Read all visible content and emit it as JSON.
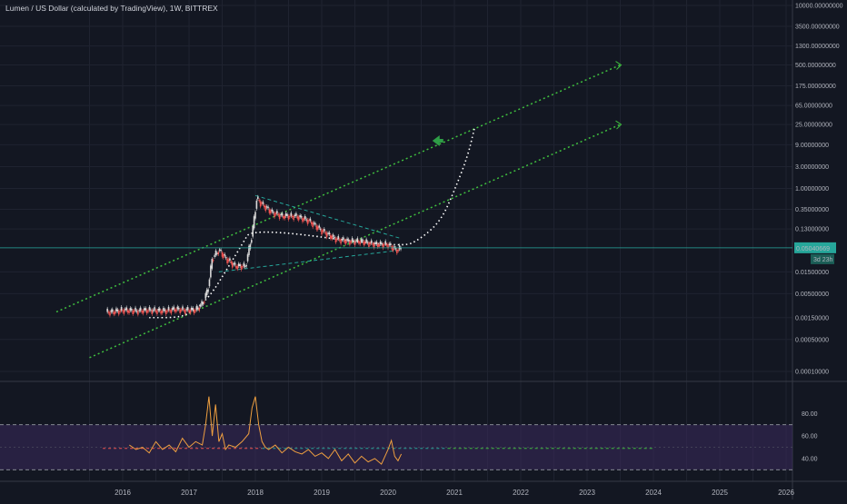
{
  "header": {
    "title": "Lumen / US Dollar (calculated by TradingView), 1W, BITTREX"
  },
  "colors": {
    "background": "#131722",
    "grid": "#1f2330",
    "up_candle": "#d9d9d9",
    "down_candle": "#ef5350",
    "channel": "#3fbf3f",
    "triangle": "#26a69a",
    "projection": "#ffffff",
    "price_line": "#26a69a",
    "indicator_line": "#f0a040",
    "indicator_band": "#3a2a5c",
    "indicator_dash": "#ef5350"
  },
  "chart_data": [
    {
      "type": "line",
      "title": "Lumen / US Dollar (calculated by TradingView), 1W, BITTREX",
      "scale": "log",
      "y_ticks": [
        "10000.00000000",
        "3500.00000000",
        "1300.00000000",
        "500.00000000",
        "175.00000000",
        "65.00000000",
        "25.00000000",
        "9.00000000",
        "3.00000000",
        "1.00000000",
        "0.35000000",
        "0.13000000",
        "0.05000000",
        "0.01500000",
        "0.00500000",
        "0.00150000",
        "0.00050000",
        "0.00010000"
      ],
      "x_ticks": [
        "2016",
        "2017",
        "2018",
        "2019",
        "2020",
        "2021",
        "2022",
        "2023",
        "2024",
        "2025",
        "2026"
      ],
      "last_price_label": "0.05040669",
      "countdown_label": "3d 23h",
      "series": [
        {
          "x": [
            2015.7,
            2015.85,
            2016.0,
            2016.2,
            2016.4,
            2016.6,
            2016.8,
            2016.95,
            2017.1,
            2017.2,
            2017.28,
            2017.35,
            2017.45,
            2017.55,
            2017.7,
            2017.85,
            2017.95,
            2018.02,
            2018.1,
            2018.25,
            2018.4,
            2018.6,
            2018.8,
            2019.0,
            2019.2,
            2019.4,
            2019.6,
            2019.8,
            2020.0,
            2020.12,
            2020.2
          ],
          "y": [
            0.002,
            0.002,
            0.0022,
            0.0021,
            0.0022,
            0.0021,
            0.0023,
            0.0022,
            0.0022,
            0.003,
            0.006,
            0.03,
            0.045,
            0.03,
            0.02,
            0.02,
            0.1,
            0.6,
            0.45,
            0.3,
            0.25,
            0.25,
            0.2,
            0.12,
            0.08,
            0.07,
            0.07,
            0.06,
            0.06,
            0.045,
            0.05
          ]
        }
      ],
      "annotations": {
        "channel_upper": {
          "x": [
            2015.0,
            2023.5
          ],
          "y": [
            0.002,
            500
          ]
        },
        "channel_lower": {
          "x": [
            2015.5,
            2023.5
          ],
          "y": [
            0.0002,
            25
          ]
        },
        "triangle_upper": {
          "x": [
            2018.0,
            2020.2
          ],
          "y": [
            0.7,
            0.08
          ]
        },
        "triangle_lower": {
          "x": [
            2017.45,
            2020.2
          ],
          "y": [
            0.015,
            0.045
          ]
        },
        "projection_curve": {
          "x": [
            2016.4,
            2016.8,
            2017.0,
            2017.3,
            2017.6,
            2017.8,
            2017.95,
            2020.2,
            2020.5,
            2020.8,
            2021.0,
            2021.2,
            2021.3
          ],
          "y": [
            0.0015,
            0.0015,
            0.0018,
            0.004,
            0.02,
            0.06,
            0.14,
            0.05,
            0.08,
            0.2,
            0.9,
            5,
            20
          ]
        }
      }
    },
    {
      "type": "line",
      "y_ticks": [
        "80.00",
        "60.00",
        "40.00"
      ],
      "ylim": [
        23,
        102
      ],
      "series": [
        {
          "x": [
            2016.1,
            2016.2,
            2016.3,
            2016.4,
            2016.5,
            2016.6,
            2016.7,
            2016.8,
            2016.9,
            2017.0,
            2017.1,
            2017.2,
            2017.25,
            2017.3,
            2017.35,
            2017.4,
            2017.45,
            2017.5,
            2017.55,
            2017.6,
            2017.7,
            2017.8,
            2017.9,
            2017.95,
            2018.0,
            2018.05,
            2018.1,
            2018.15,
            2018.2,
            2018.3,
            2018.4,
            2018.5,
            2018.6,
            2018.7,
            2018.8,
            2018.9,
            2019.0,
            2019.1,
            2019.2,
            2019.3,
            2019.4,
            2019.5,
            2019.6,
            2019.7,
            2019.8,
            2019.9,
            2020.0,
            2020.05,
            2020.1,
            2020.15,
            2020.2
          ],
          "y": [
            52,
            48,
            50,
            45,
            55,
            48,
            52,
            46,
            58,
            50,
            55,
            52,
            70,
            95,
            60,
            88,
            55,
            62,
            48,
            52,
            50,
            55,
            62,
            85,
            95,
            70,
            55,
            50,
            48,
            52,
            45,
            50,
            46,
            44,
            48,
            42,
            45,
            40,
            48,
            38,
            44,
            36,
            42,
            37,
            40,
            35,
            48,
            56,
            42,
            38,
            44
          ]
        }
      ],
      "reference_dash_a": 49,
      "reference_dash_b": 47
    }
  ]
}
